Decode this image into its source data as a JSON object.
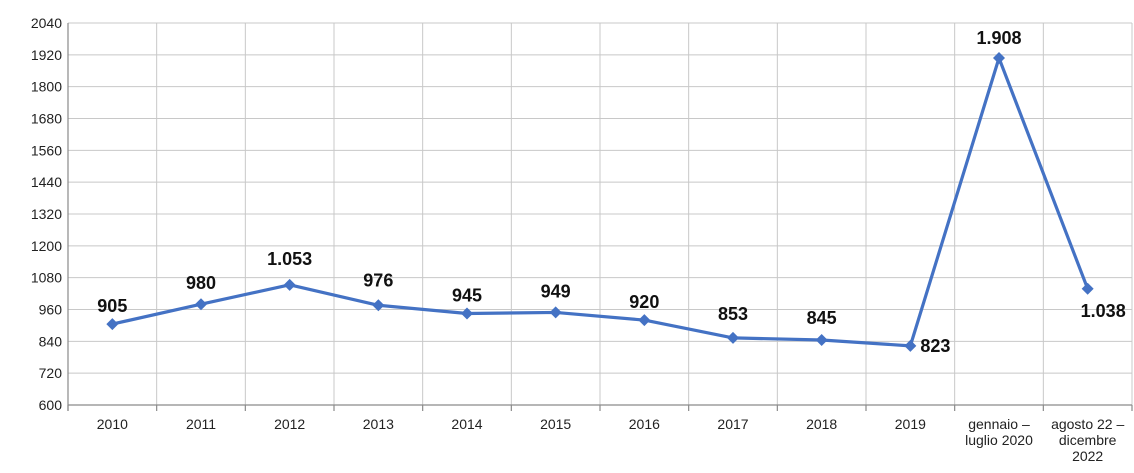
{
  "chart_data": {
    "type": "line",
    "title": "",
    "xlabel": "",
    "ylabel": "",
    "categories": [
      [
        "2010"
      ],
      [
        "2011"
      ],
      [
        "2012"
      ],
      [
        "2013"
      ],
      [
        "2014"
      ],
      [
        "2015"
      ],
      [
        "2016"
      ],
      [
        "2017"
      ],
      [
        "2018"
      ],
      [
        "2019"
      ],
      [
        "gennaio –",
        "luglio 2020"
      ],
      [
        "agosto 22 –",
        "dicembre",
        "2022"
      ]
    ],
    "series": [
      {
        "values": [
          905,
          980,
          1053,
          976,
          945,
          949,
          920,
          853,
          845,
          823,
          1908,
          1038
        ],
        "data_labels": [
          "905",
          "980",
          "1.053",
          "976",
          "945",
          "949",
          "920",
          "853",
          "845",
          "823",
          "1.908",
          "1.038"
        ]
      }
    ],
    "ylim": [
      600,
      2040
    ],
    "yticks": [
      "600",
      "720",
      "840",
      "960",
      "1080",
      "1200",
      "1320",
      "1440",
      "1560",
      "1680",
      "1800",
      "1920",
      "2040"
    ],
    "grid": true,
    "legend": "none",
    "colors": {
      "series": "#4472c4",
      "grid": "#c8c8c8",
      "axis": "#8a8a8a"
    }
  }
}
